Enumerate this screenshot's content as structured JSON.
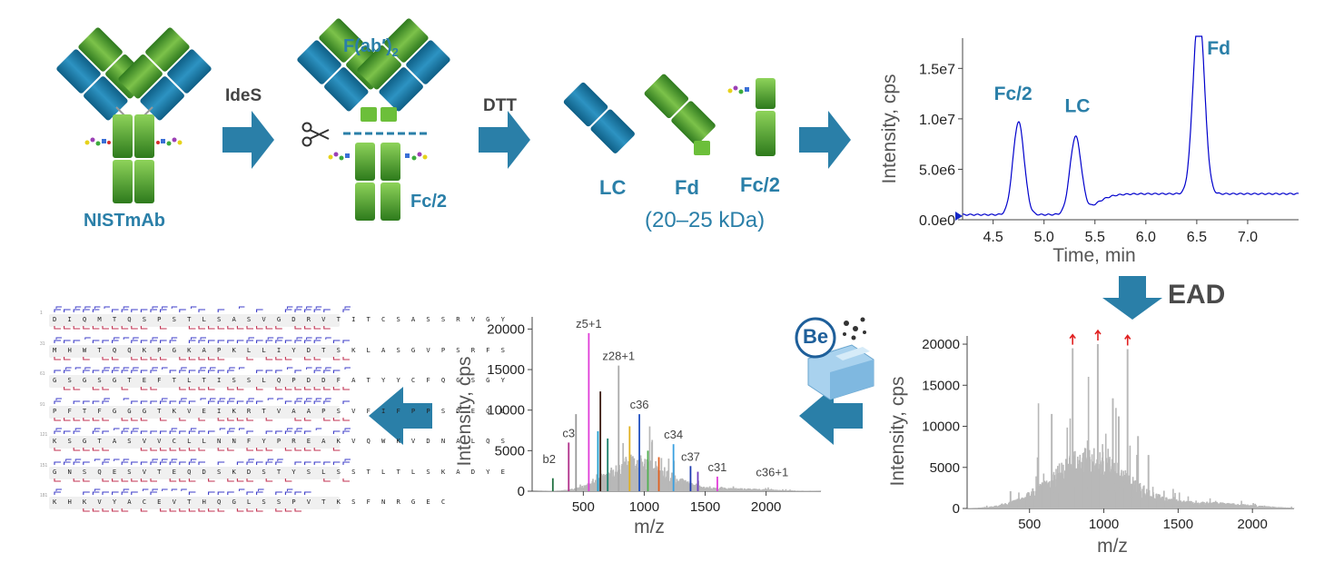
{
  "diagram": {
    "antibody_label": "NISTmAb",
    "enzyme_step": "IdeS",
    "reduction_step": "DTT",
    "fab_label": "F(ab′)",
    "fab_subscript": "2",
    "fc_label": "Fc/2",
    "subunits": [
      "LC",
      "Fd",
      "Fc/2"
    ],
    "size_range": "(20–25 kDa)",
    "fragmentation_step": "EAD",
    "badge_text": "Be",
    "colors": {
      "teal": "#2a7fa8",
      "green": "#5fa83a",
      "arrow": "#2a7fa8",
      "trace": "#0000cc",
      "spectrum": "#b8b8b8"
    }
  },
  "chart_data": [
    {
      "type": "line",
      "title": "",
      "xlabel": "Time, min",
      "ylabel": "Intensity, cps",
      "xlim": [
        4.2,
        7.5
      ],
      "ylim": [
        0,
        18000000
      ],
      "x_ticks": [
        "4.5",
        "5.0",
        "5.5",
        "6.0",
        "6.5",
        "7.0"
      ],
      "y_ticks": [
        "0.0e0",
        "5.0e6",
        "1.0e7",
        "1.5e7"
      ],
      "peaks": [
        {
          "label": "Fc/2",
          "x": 4.75,
          "y": 9200000
        },
        {
          "label": "LC",
          "x": 5.31,
          "y": 7600000
        },
        {
          "label": "Fd",
          "x": 6.52,
          "y": 18500000
        }
      ],
      "baseline": 500000,
      "tail_level": 2800000
    },
    {
      "type": "bar",
      "title": "",
      "xlabel": "m/z",
      "ylabel": "Intensity, cps",
      "xlim": [
        80,
        2280
      ],
      "ylim": [
        0,
        21000
      ],
      "x_ticks": [
        "500",
        "1000",
        "1500",
        "2000"
      ],
      "y_ticks": [
        "0",
        "5000",
        "10000",
        "15000",
        "20000"
      ],
      "selected_precursors": [
        790,
        960,
        1160
      ]
    },
    {
      "type": "bar",
      "title": "",
      "xlabel": "m/z",
      "ylabel": "Intensity, cps",
      "xlim": [
        80,
        2450
      ],
      "ylim": [
        0,
        21500
      ],
      "x_ticks": [
        "500",
        "1000",
        "1500",
        "2000"
      ],
      "y_ticks": [
        "0",
        "5000",
        "10000",
        "15000",
        "20000"
      ],
      "annotations": [
        {
          "label": "z5+1",
          "x": 545,
          "y": 19500
        },
        {
          "label": "z28+1",
          "x": 790,
          "y": 15500
        },
        {
          "label": "c36",
          "x": 960,
          "y": 9500
        },
        {
          "label": "c3",
          "x": 380,
          "y": 6000
        },
        {
          "label": "c34",
          "x": 1240,
          "y": 5800
        },
        {
          "label": "c37",
          "x": 1380,
          "y": 3100
        },
        {
          "label": "b2",
          "x": 220,
          "y": 2800
        },
        {
          "label": "c31",
          "x": 1600,
          "y": 1800
        },
        {
          "label": "c36+1",
          "x": 2050,
          "y": 1200
        }
      ]
    }
  ],
  "sequence_rows": [
    {
      "num": "1",
      "seq": "D I Q M T Q S P S T L S A S V G D R V T I T C S A S S R V G Y"
    },
    {
      "num": "31",
      "seq": "M H W T Q Q K P G K A P K L L I Y D T S K L A S G V P S R F S"
    },
    {
      "num": "61",
      "seq": "G S G S G T E F T L T I S S L Q P D D F A T Y Y C F Q G S G Y"
    },
    {
      "num": "91",
      "seq": "P F T F G G G T K V E I K R T V A A P S V F I F P P S D E Q L"
    },
    {
      "num": "121",
      "seq": "K S G T A S V V C L L N N F Y P R E A K V Q W K V D N A L Q S"
    },
    {
      "num": "151",
      "seq": "G N S Q E S V T E Q D S K D S T Y S L S S T L T L S K A D Y E"
    },
    {
      "num": "181",
      "seq": "K H K V Y A C E V T H Q G L S S P V T K S F N R G E C"
    }
  ]
}
